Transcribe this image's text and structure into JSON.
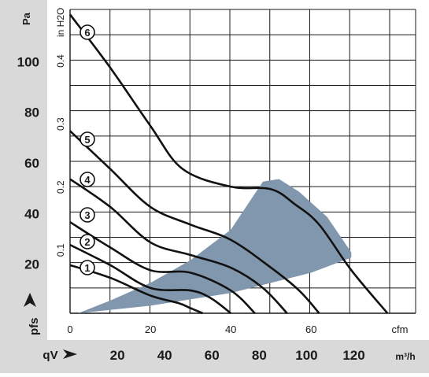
{
  "chart_data": {
    "type": "line",
    "title": "",
    "colors": {
      "panel": "#d9d9d9",
      "grid": "#1a1a1a",
      "curve": "#111111",
      "operating_area": "#8197ae",
      "text": "#1a1a1a"
    },
    "x_axis": {
      "unit": "cfm",
      "range": [
        0,
        86
      ],
      "ticks": [
        0,
        20,
        40,
        60
      ],
      "tick_labels": [
        "0",
        "20",
        "40",
        "60"
      ]
    },
    "x_axis_secondary": {
      "label": "qV",
      "unit": "m³/h",
      "ticks": [
        20,
        40,
        60,
        80,
        100,
        120
      ],
      "tick_labels": [
        "20",
        "40",
        "60",
        "80",
        "100",
        "120"
      ]
    },
    "y_axis": {
      "label": "pfs",
      "unit": "Pa",
      "range": [
        0,
        120
      ],
      "ticks": [
        20,
        40,
        60,
        80,
        100
      ],
      "tick_labels": [
        "20",
        "40",
        "60",
        "80",
        "100"
      ]
    },
    "y_axis_secondary": {
      "unit": "in H2O",
      "ticks": [
        0.1,
        0.2,
        0.3,
        0.4
      ],
      "tick_labels": [
        "0.1",
        "0.2",
        "0.3",
        "0.4"
      ]
    },
    "grid": true,
    "series": [
      {
        "name": "1",
        "x": [
          0,
          10,
          20,
          27,
          30,
          33
        ],
        "y": [
          19,
          14,
          7,
          4,
          2,
          0
        ]
      },
      {
        "name": "2",
        "x": [
          0,
          10,
          20,
          30,
          35,
          40
        ],
        "y": [
          27,
          19,
          10,
          9,
          6,
          0
        ]
      },
      {
        "name": "3",
        "x": [
          0,
          10,
          20,
          30,
          40,
          46
        ],
        "y": [
          36,
          26,
          17,
          16,
          9,
          0
        ]
      },
      {
        "name": "4",
        "x": [
          0,
          10,
          20,
          30,
          40,
          48,
          54
        ],
        "y": [
          53,
          42,
          28,
          23,
          18,
          10,
          0
        ]
      },
      {
        "name": "5",
        "x": [
          0,
          10,
          20,
          30,
          40,
          50,
          57,
          62
        ],
        "y": [
          72,
          57,
          42,
          35,
          29,
          18,
          9,
          0
        ]
      },
      {
        "name": "6",
        "x": [
          0,
          10,
          20,
          28,
          40,
          50,
          56,
          62,
          70,
          79
        ],
        "y": [
          118,
          97,
          74,
          57,
          50,
          49,
          43,
          35,
          17,
          0
        ]
      }
    ],
    "operating_area": {
      "upper": {
        "x": [
          2,
          10,
          20,
          30,
          40,
          48,
          52,
          57,
          64,
          70
        ],
        "y": [
          0,
          5,
          12,
          21,
          33,
          52,
          53,
          48,
          38,
          24
        ]
      },
      "lower": {
        "x": [
          70,
          60,
          40,
          20,
          2
        ],
        "y": [
          22,
          16,
          8,
          3,
          0
        ]
      }
    }
  }
}
